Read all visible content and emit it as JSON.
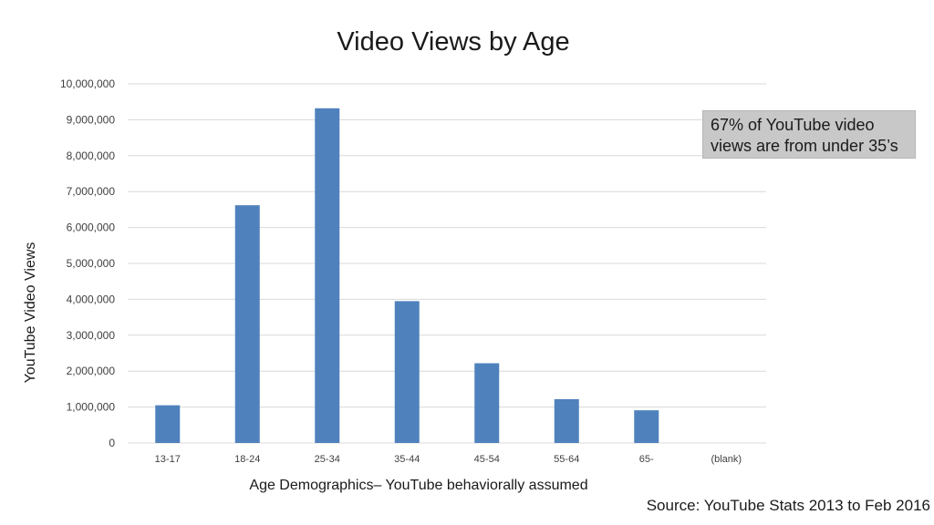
{
  "chart_data": {
    "type": "bar",
    "title": "Video Views by Age",
    "xlabel": "Age Demographics– YouTube behaviorally assumed",
    "ylabel": "YouTube Video Views",
    "categories": [
      "13-17",
      "18-24",
      "25-34",
      "35-44",
      "45-54",
      "55-64",
      "65-",
      "(blank)"
    ],
    "values": [
      1050000,
      6620000,
      9320000,
      3950000,
      2220000,
      1220000,
      910000,
      0
    ],
    "ylim": [
      0,
      10000000
    ],
    "yticks": [
      0,
      1000000,
      2000000,
      3000000,
      4000000,
      5000000,
      6000000,
      7000000,
      8000000,
      9000000,
      10000000
    ],
    "ytick_labels": [
      "0",
      "1,000,000",
      "2,000,000",
      "3,000,000",
      "4,000,000",
      "5,000,000",
      "6,000,000",
      "7,000,000",
      "8,000,000",
      "9,000,000",
      "10,000,000"
    ],
    "grid": true,
    "legend": "none",
    "bar_color": "#4f81bd",
    "grid_color": "#d9d9d9",
    "annotation": "67% of YouTube video views are from under 35’s",
    "source": "Source: YouTube Stats 2013 to Feb 2016"
  }
}
